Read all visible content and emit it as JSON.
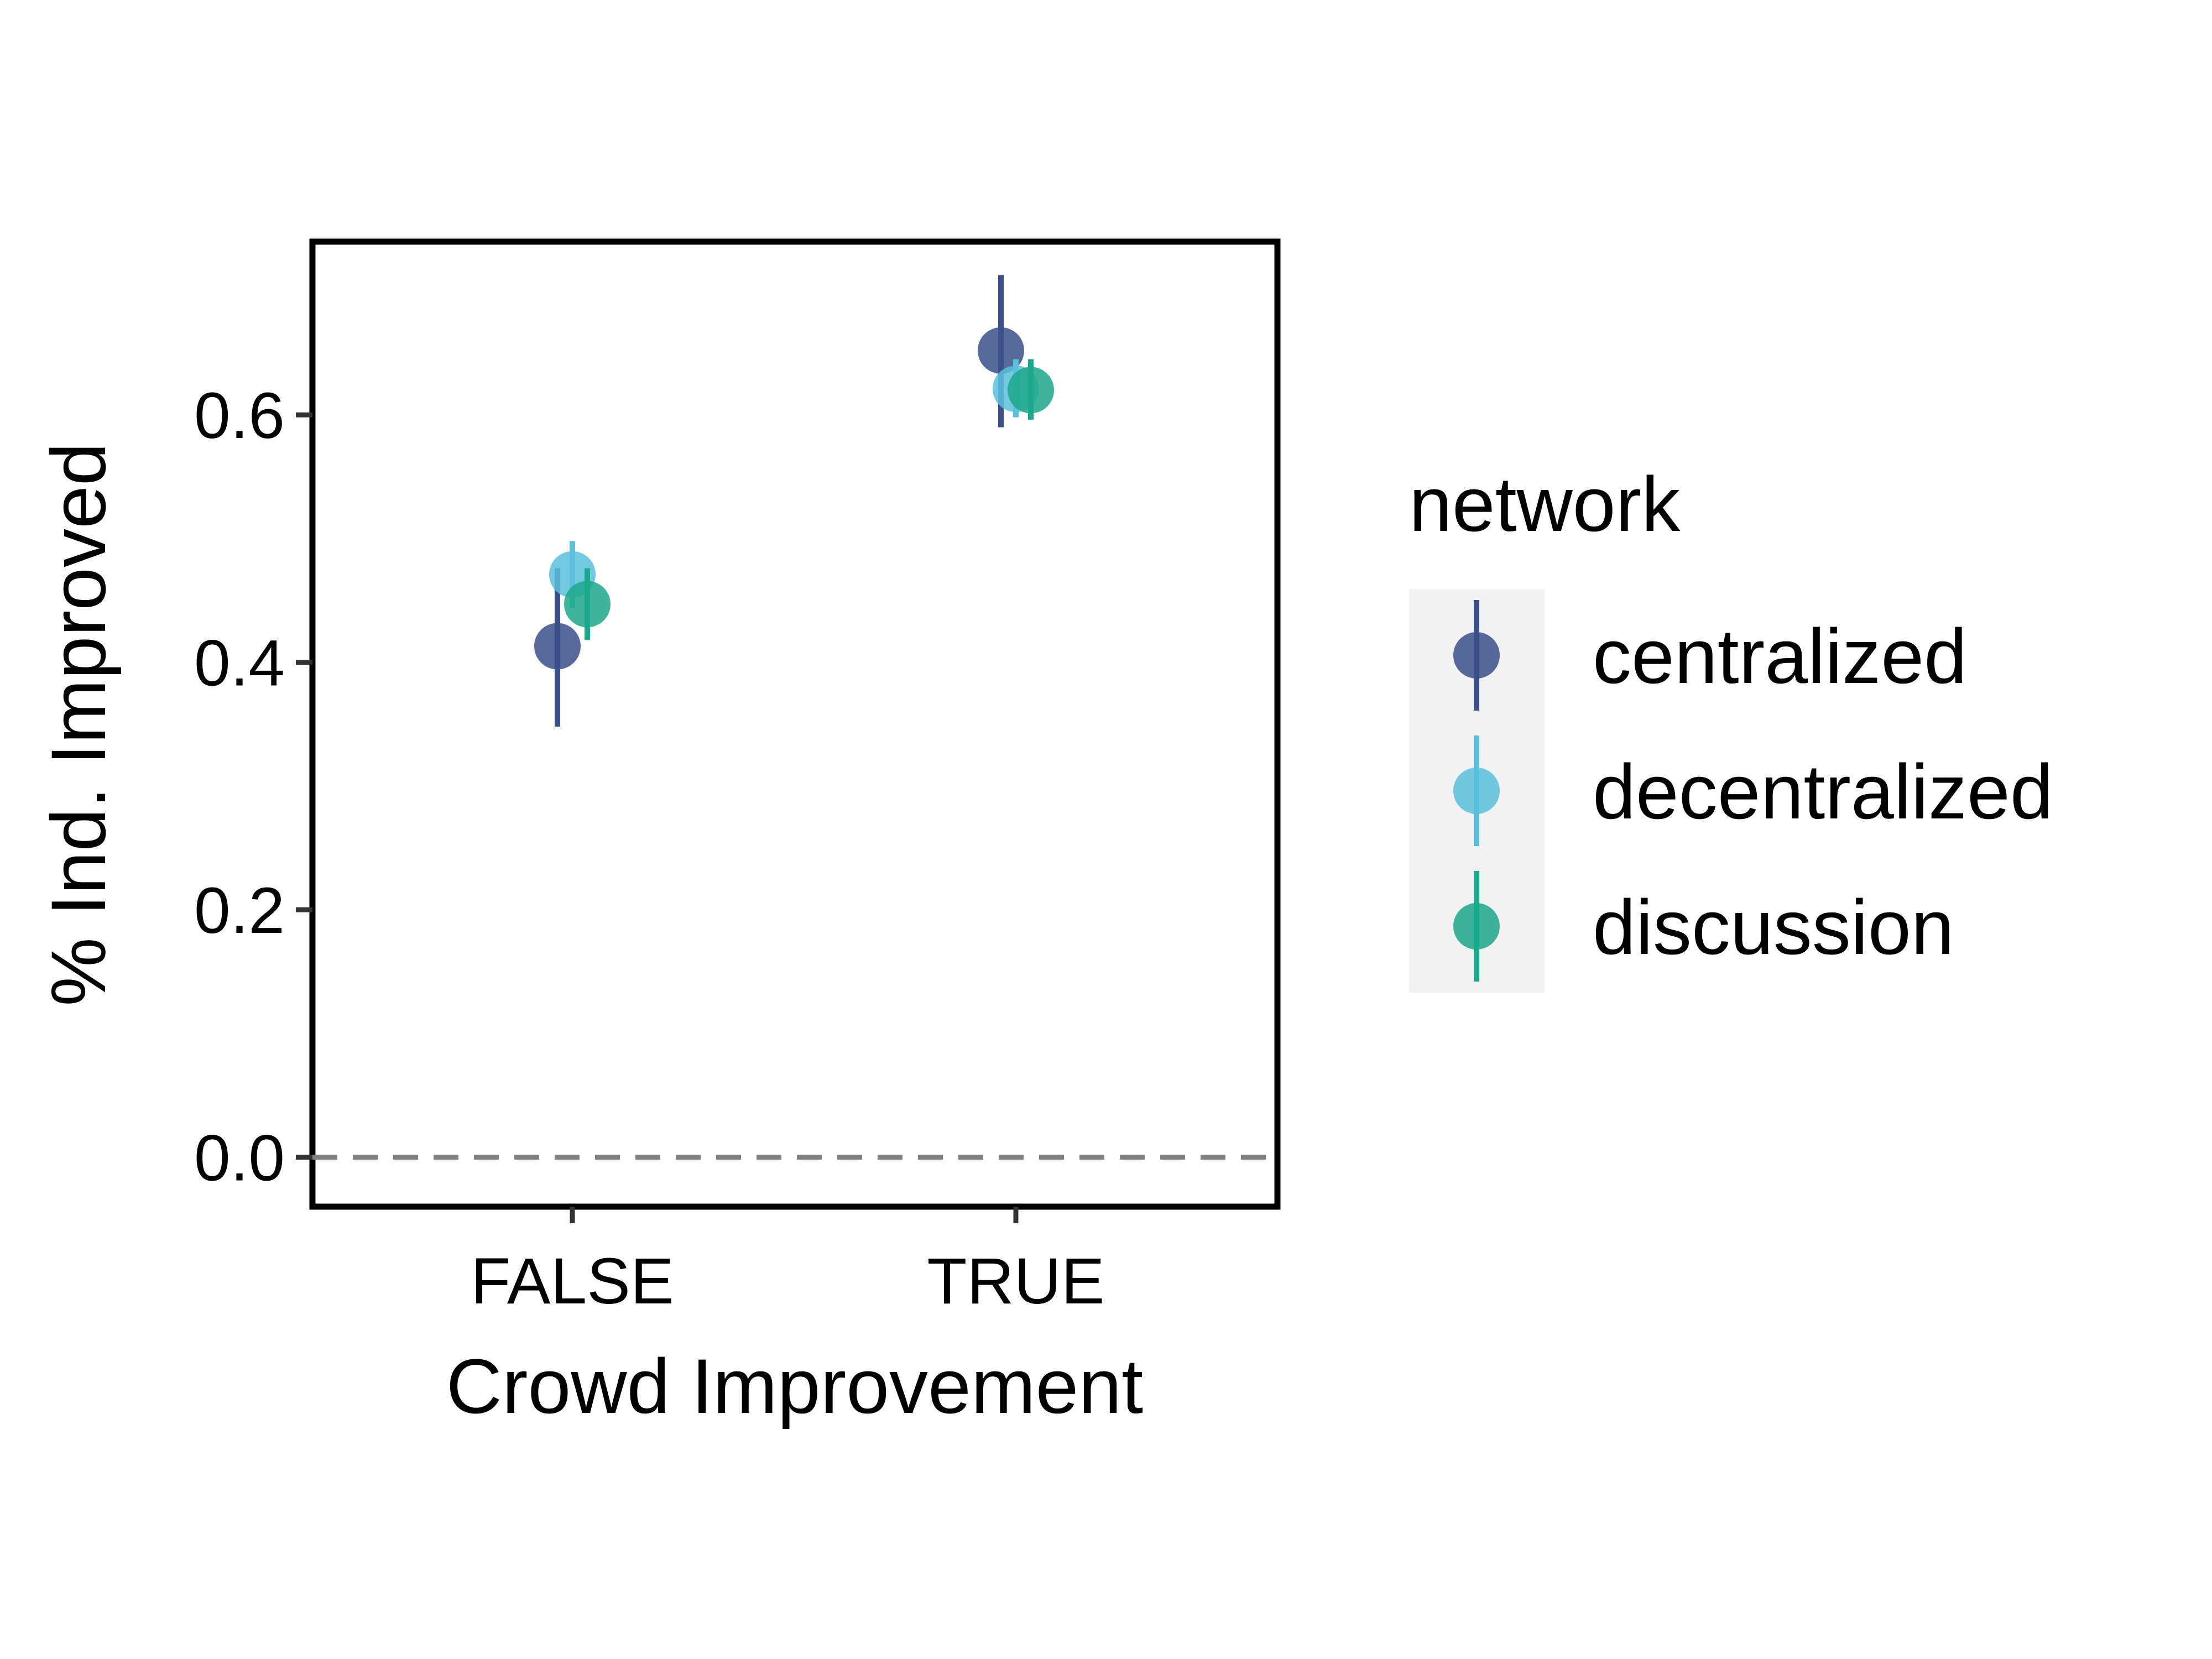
{
  "chart_data": {
    "type": "scatter",
    "title": "",
    "xlabel": "Crowd Improvement",
    "ylabel": "% Ind. Improved",
    "categories": [
      "FALSE",
      "TRUE"
    ],
    "ylim": [
      -0.04,
      0.74
    ],
    "yticks": [
      0.0,
      0.2,
      0.4,
      0.6
    ],
    "ytick_labels": [
      "0.0",
      "0.2",
      "0.4",
      "0.6"
    ],
    "reference_line": {
      "y": 0.0,
      "style": "dashed",
      "color": "#808080"
    },
    "grid": false,
    "legend": {
      "title": "network",
      "position": "right"
    },
    "series": [
      {
        "name": "centralized",
        "color": "#3b4f8a",
        "values": [
          0.413,
          0.652
        ],
        "lower": [
          0.348,
          0.59
        ],
        "upper": [
          0.476,
          0.713
        ]
      },
      {
        "name": "decentralized",
        "color": "#5bbfdc",
        "values": [
          0.471,
          0.621
        ],
        "lower": [
          0.444,
          0.598
        ],
        "upper": [
          0.498,
          0.645
        ]
      },
      {
        "name": "discussion",
        "color": "#1ca88a",
        "values": [
          0.447,
          0.62
        ],
        "lower": [
          0.418,
          0.596
        ],
        "upper": [
          0.476,
          0.645
        ]
      }
    ]
  }
}
